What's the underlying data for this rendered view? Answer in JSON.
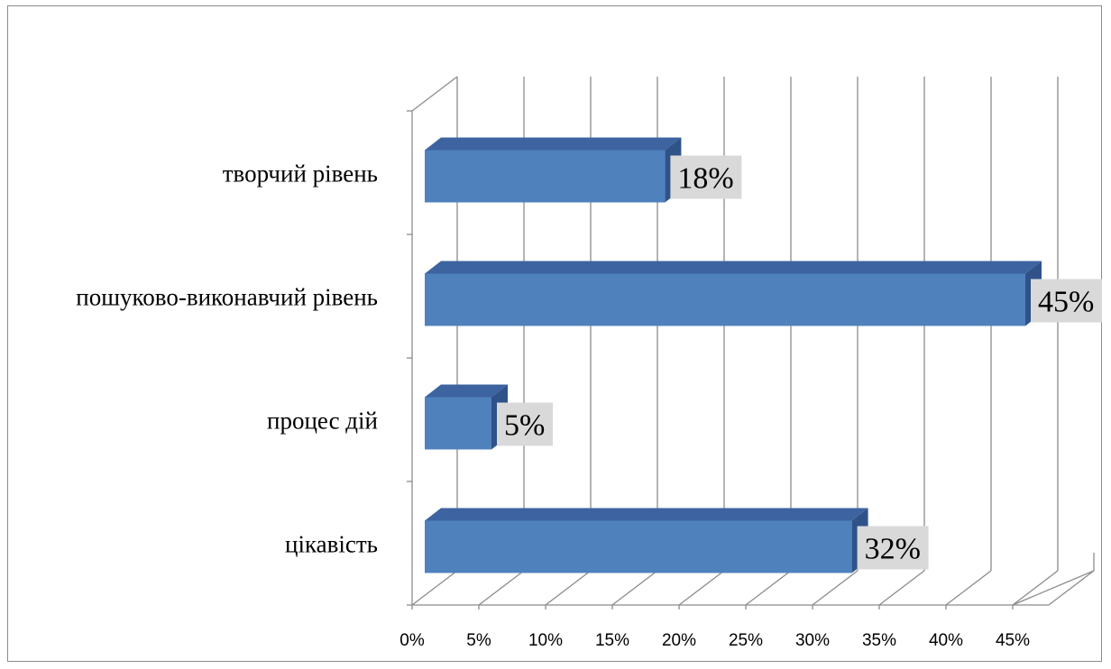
{
  "chart_data": {
    "type": "bar",
    "orientation": "horizontal",
    "style": "3d",
    "categories": [
      "творчий рівень",
      "пошуково-виконавчий рівень",
      "процес дій ",
      "цікавість"
    ],
    "values": [
      18,
      45,
      5,
      32
    ],
    "data_labels": [
      "18%",
      "45%",
      "5%",
      "32%"
    ],
    "x_ticks": [
      "0%",
      "5%",
      "10%",
      "15%",
      "20%",
      "25%",
      "30%",
      "35%",
      "40%",
      "45%"
    ],
    "xlim": [
      0,
      45
    ],
    "grid": true,
    "legend": "none",
    "colors": {
      "bar_front": "#4f81bd",
      "bar_top": "#3d64a0",
      "bar_side": "#2f5289",
      "label_bg": "#d9d9d9",
      "grid": "#8c8c8c"
    }
  }
}
